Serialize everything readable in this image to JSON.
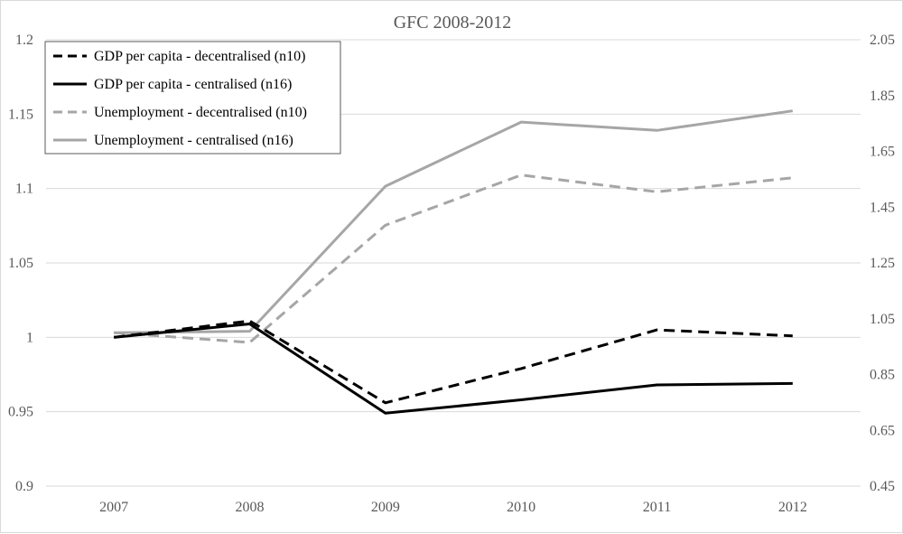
{
  "chart_data": {
    "type": "line",
    "title": "GFC 2008-2012",
    "xlabel": "",
    "ylabel": "",
    "y2label": "",
    "categories": [
      "2007",
      "2008",
      "2009",
      "2010",
      "2011",
      "2012"
    ],
    "ylim": [
      0.9,
      1.2
    ],
    "y_ticks": [
      "0.9",
      "0.95",
      "1",
      "1.05",
      "1.1",
      "1.15",
      "1.2"
    ],
    "y2lim": [
      0.45,
      2.05
    ],
    "y2_ticks": [
      "0.45",
      "0.65",
      "0.85",
      "1.05",
      "1.25",
      "1.45",
      "1.65",
      "1.85",
      "2.05"
    ],
    "grid": true,
    "legend_position": "top-left",
    "series": [
      {
        "name": "GDP per capita - decentralised (n10)",
        "axis": "left",
        "style": "dashed",
        "color": "#000000",
        "values": [
          1.0,
          1.011,
          0.956,
          0.979,
          1.005,
          1.001
        ]
      },
      {
        "name": "GDP per capita - centralised (n16)",
        "axis": "left",
        "style": "solid",
        "color": "#000000",
        "values": [
          1.0,
          1.009,
          0.949,
          0.958,
          0.968,
          0.969
        ]
      },
      {
        "name": "Unemployment - decentralised (n10)",
        "axis": "right",
        "style": "dashed",
        "color": "#a6a6a6",
        "values": [
          1.0,
          0.965,
          1.385,
          1.565,
          1.505,
          1.555
        ]
      },
      {
        "name": "Unemployment - centralised (n16)",
        "axis": "right",
        "style": "solid",
        "color": "#a6a6a6",
        "values": [
          1.0,
          1.005,
          1.525,
          1.755,
          1.725,
          1.795
        ]
      }
    ]
  }
}
